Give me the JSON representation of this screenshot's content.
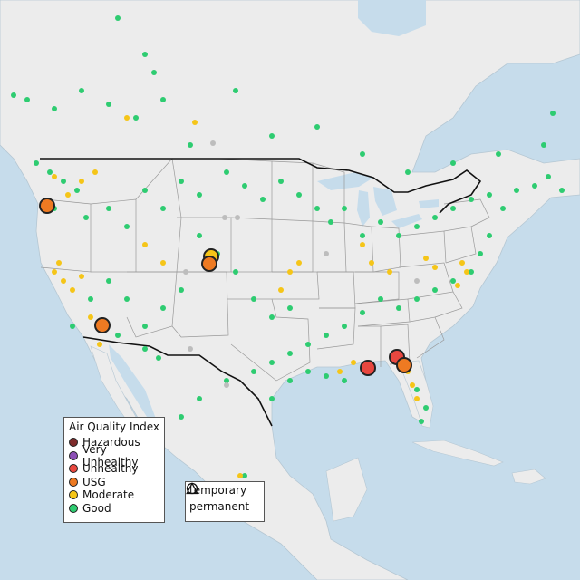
{
  "map": {
    "colors": {
      "ocean": "#c6dceb",
      "land": "#ececec",
      "state_border": "#9a9a9a",
      "country_border": "#111111",
      "no_data": "#bdbdbd"
    },
    "aqi_legend": {
      "title": "Air Quality Index",
      "categories": [
        {
          "label": "Hazardous",
          "color": "#7e2b2b"
        },
        {
          "label": "Very Unhealthy",
          "color": "#8c4fb5"
        },
        {
          "label": "Unhealthy",
          "color": "#e8473f"
        },
        {
          "label": "USG",
          "color": "#ee7a22"
        },
        {
          "label": "Moderate",
          "color": "#f5c518"
        },
        {
          "label": "Good",
          "color": "#2ecc71"
        }
      ]
    },
    "monitor_type_legend": {
      "items": [
        {
          "label": "temporary",
          "icon": "circle-icon"
        },
        {
          "label": "permanent",
          "icon": "triangle-icon"
        }
      ]
    },
    "highlighted_monitors": [
      {
        "category": "USG",
        "region": "Seattle, WA"
      },
      {
        "category": "Moderate",
        "region": "Denver, CO"
      },
      {
        "category": "USG",
        "region": "Denver, CO"
      },
      {
        "category": "USG",
        "region": "Phoenix, AZ"
      },
      {
        "category": "Unhealthy",
        "region": "Mobile, AL"
      },
      {
        "category": "Unhealthy",
        "region": "Tallahassee, FL"
      },
      {
        "category": "USG",
        "region": "Tallahassee, FL"
      }
    ]
  }
}
